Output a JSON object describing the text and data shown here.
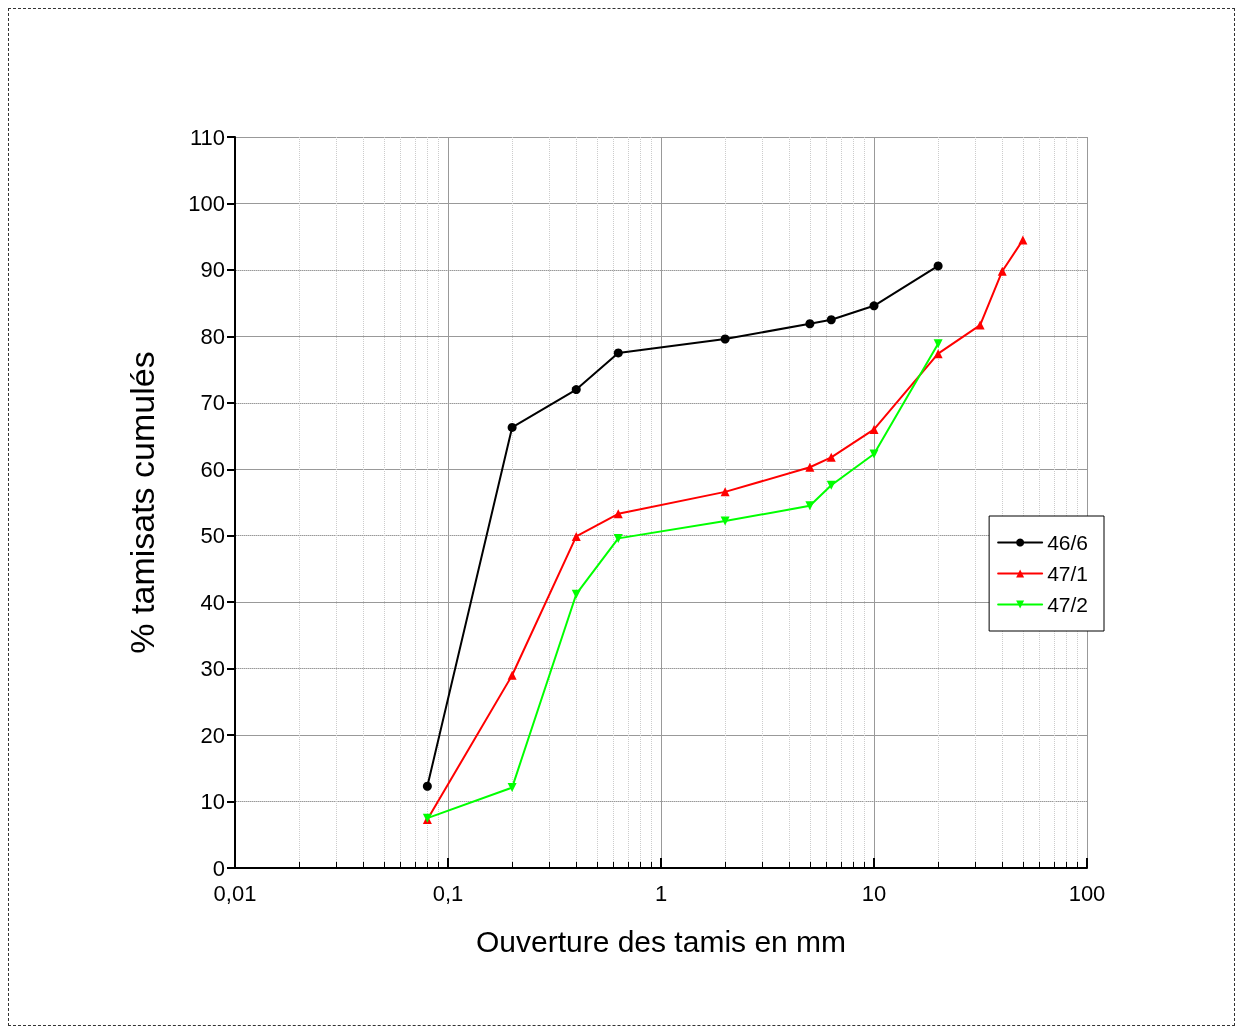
{
  "chart_data": {
    "type": "line",
    "xlabel": "Ouverture des tamis en mm",
    "ylabel": "% tamisats cumulés",
    "log": "x",
    "grid": true,
    "legend": "right",
    "line_style": "solid",
    "xlim": [
      0.01,
      100
    ],
    "xticks": [
      {
        "value": 0.01,
        "label": "0,01"
      },
      {
        "value": 0.1,
        "label": "0,1"
      },
      1,
      10,
      100
    ],
    "ylim": [
      0,
      110
    ],
    "yticks": [
      0,
      10,
      20,
      30,
      40,
      50,
      60,
      70,
      80,
      90,
      100,
      110
    ],
    "series": [
      {
        "name": "46/6",
        "color": "#000000",
        "marker": "circle",
        "x": [
          0.08,
          0.2,
          0.4,
          0.63,
          2,
          5,
          6.3,
          10,
          20
        ],
        "values": [
          12.3,
          66.3,
          72.0,
          77.5,
          79.6,
          81.9,
          82.5,
          84.6,
          90.6
        ]
      },
      {
        "name": "47/1",
        "color": "#ff0000",
        "marker": "triangle",
        "x": [
          0.08,
          0.2,
          0.4,
          0.63,
          2,
          5,
          6.3,
          10,
          20,
          31.5,
          40,
          50
        ],
        "values": [
          7.3,
          29.0,
          49.9,
          53.3,
          56.6,
          60.3,
          61.8,
          66.0,
          77.4,
          81.7,
          89.8,
          94.5
        ]
      },
      {
        "name": "47/2",
        "color": "#00ff00",
        "marker": "triangle-down",
        "x": [
          0.08,
          0.2,
          0.4,
          0.63,
          2,
          5,
          6.3,
          10,
          20
        ],
        "values": [
          7.5,
          12.1,
          41.2,
          49.6,
          52.2,
          54.5,
          57.6,
          62.3,
          78.9
        ]
      }
    ]
  }
}
